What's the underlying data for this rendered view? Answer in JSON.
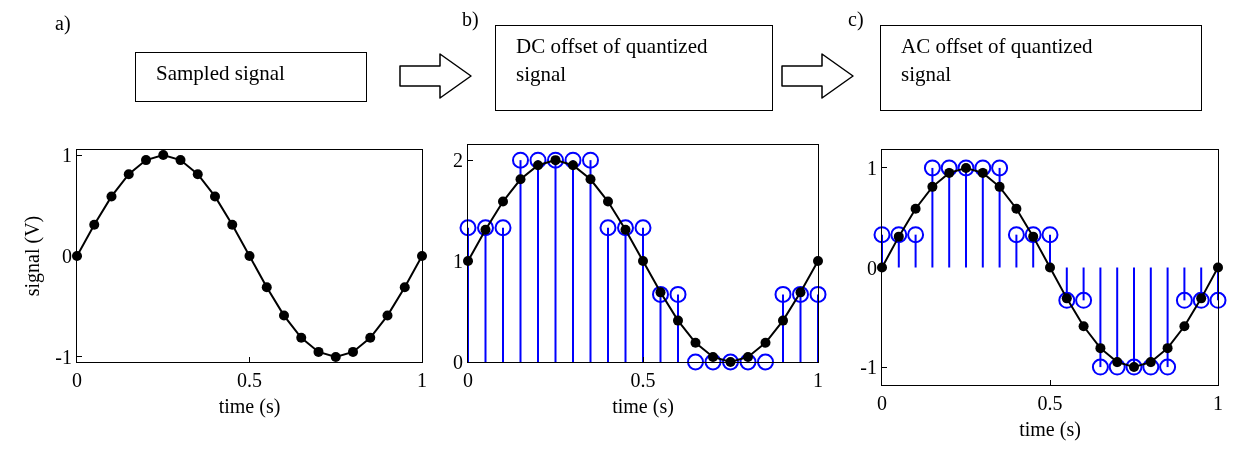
{
  "chart_data": [
    {
      "type": "line",
      "title": "Sampled signal",
      "annotations": [
        "a)"
      ],
      "xlabel": "time (s)",
      "ylabel": "signal (V)",
      "xlim": [
        0,
        1
      ],
      "ylim": [
        -1.05,
        1.05
      ],
      "xticks": [
        0,
        0.5,
        1
      ],
      "yticks": [
        -1,
        0,
        1
      ],
      "grid": false,
      "x": [
        0,
        0.05,
        0.1,
        0.15,
        0.2,
        0.25,
        0.3,
        0.35,
        0.4,
        0.45,
        0.5,
        0.55,
        0.6,
        0.65,
        0.7,
        0.75,
        0.8,
        0.85,
        0.9,
        0.95,
        1
      ],
      "series": [
        {
          "color": "#000000",
          "marker": "circle",
          "line_style": "solid",
          "values": [
            0,
            0.31,
            0.59,
            0.81,
            0.95,
            1,
            0.95,
            0.81,
            0.59,
            0.31,
            0,
            -0.31,
            -0.59,
            -0.81,
            -0.95,
            -1,
            -0.95,
            -0.81,
            -0.59,
            -0.31,
            0
          ]
        }
      ]
    },
    {
      "type": "line",
      "title": "DC offset of quantized signal",
      "annotations": [
        "b)"
      ],
      "xlabel": "time (s)",
      "xlim": [
        0,
        1
      ],
      "ylim": [
        0,
        2.15
      ],
      "xticks": [
        0,
        0.5,
        1
      ],
      "yticks": [
        0,
        1,
        2
      ],
      "grid": false,
      "x": [
        0,
        0.05,
        0.1,
        0.15,
        0.2,
        0.25,
        0.3,
        0.35,
        0.4,
        0.45,
        0.5,
        0.55,
        0.6,
        0.65,
        0.7,
        0.75,
        0.8,
        0.85,
        0.9,
        0.95,
        1
      ],
      "series": [
        {
          "type": "lollipop",
          "color": "#0000ff",
          "marker": "circle",
          "values": [
            1.33,
            1.33,
            1.33,
            2,
            2,
            2,
            2,
            2,
            1.33,
            1.33,
            1.33,
            0.67,
            0.67,
            0,
            0,
            0,
            0,
            0,
            0.67,
            0.67,
            0.67
          ]
        },
        {
          "color": "#000000",
          "marker": "circle",
          "line_style": "solid",
          "values": [
            1,
            1.31,
            1.59,
            1.81,
            1.95,
            2,
            1.95,
            1.81,
            1.59,
            1.31,
            1,
            0.69,
            0.41,
            0.19,
            0.05,
            0,
            0.05,
            0.19,
            0.41,
            0.69,
            1
          ]
        }
      ]
    },
    {
      "type": "line",
      "title": "AC offset of quantized signal",
      "annotations": [
        "c)"
      ],
      "xlabel": "time (s)",
      "xlim": [
        0,
        1
      ],
      "ylim": [
        -1.18,
        1.18
      ],
      "xticks": [
        0,
        0.5,
        1
      ],
      "yticks": [
        -1,
        0,
        1
      ],
      "grid": false,
      "x": [
        0,
        0.05,
        0.1,
        0.15,
        0.2,
        0.25,
        0.3,
        0.35,
        0.4,
        0.45,
        0.5,
        0.55,
        0.6,
        0.65,
        0.7,
        0.75,
        0.8,
        0.85,
        0.9,
        0.95,
        1
      ],
      "series": [
        {
          "type": "lollipop",
          "color": "#0000ff",
          "marker": "circle",
          "values": [
            0.33,
            0.33,
            0.33,
            1,
            1,
            1,
            1,
            1,
            0.33,
            0.33,
            0.33,
            -0.33,
            -0.33,
            -1,
            -1,
            -1,
            -1,
            -1,
            -0.33,
            -0.33,
            -0.33
          ]
        },
        {
          "color": "#000000",
          "marker": "circle",
          "line_style": "solid",
          "values": [
            0,
            0.31,
            0.59,
            0.81,
            0.95,
            1,
            0.95,
            0.81,
            0.59,
            0.31,
            0,
            -0.31,
            -0.59,
            -0.81,
            -0.95,
            -1,
            -0.95,
            -0.81,
            -0.59,
            -0.31,
            0
          ]
        }
      ]
    }
  ]
}
